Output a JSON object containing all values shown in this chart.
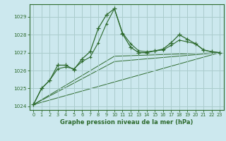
{
  "background_color": "#cce8ee",
  "grid_color": "#aacccc",
  "line_color": "#2d6a2d",
  "title": "Graphe pression niveau de la mer (hPa)",
  "xlim": [
    -0.5,
    23.5
  ],
  "ylim": [
    1023.8,
    1029.7
  ],
  "yticks": [
    1024,
    1025,
    1026,
    1027,
    1028,
    1029
  ],
  "xticks": [
    0,
    1,
    2,
    3,
    4,
    5,
    6,
    7,
    8,
    9,
    10,
    11,
    12,
    13,
    14,
    15,
    16,
    17,
    18,
    19,
    20,
    21,
    22,
    23
  ],
  "series_main": {
    "x": [
      0,
      1,
      2,
      3,
      4,
      5,
      6,
      7,
      8,
      9,
      10,
      11,
      12,
      13,
      14,
      15,
      16,
      17,
      18,
      19,
      20,
      21,
      22,
      23
    ],
    "y": [
      1024.1,
      1025.0,
      1025.45,
      1026.3,
      1026.3,
      1026.05,
      1026.65,
      1027.05,
      1028.35,
      1029.1,
      1029.45,
      1028.05,
      1027.3,
      1027.0,
      1027.0,
      1027.1,
      1027.2,
      1027.55,
      1028.0,
      1027.75,
      1027.5,
      1027.15,
      1027.05,
      1027.0
    ]
  },
  "series_second": {
    "x": [
      0,
      1,
      2,
      3,
      4,
      5,
      6,
      7,
      8,
      9,
      10,
      11,
      12,
      13,
      14,
      15,
      16,
      17,
      18,
      19,
      20,
      21,
      22,
      23
    ],
    "y": [
      1024.1,
      1025.0,
      1025.45,
      1026.1,
      1026.2,
      1026.1,
      1026.5,
      1026.75,
      1027.55,
      1028.6,
      1029.45,
      1028.1,
      1027.5,
      1027.1,
      1027.05,
      1027.1,
      1027.15,
      1027.4,
      1027.7,
      1027.6,
      1027.5,
      1027.15,
      1027.05,
      1027.0
    ]
  },
  "trend1": {
    "x": [
      0,
      23
    ],
    "y": [
      1024.1,
      1027.0
    ]
  },
  "trend2": {
    "x": [
      0,
      10,
      23
    ],
    "y": [
      1024.1,
      1026.5,
      1027.0
    ]
  },
  "trend3": {
    "x": [
      0,
      10,
      23
    ],
    "y": [
      1024.1,
      1026.8,
      1027.0
    ]
  }
}
